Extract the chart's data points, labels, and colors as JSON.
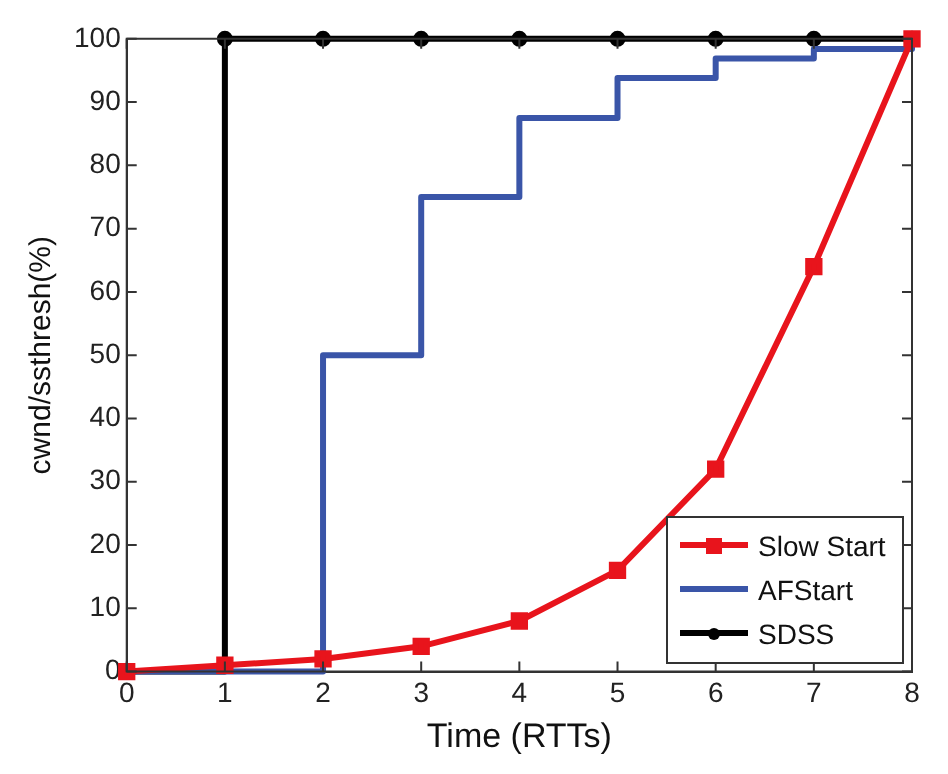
{
  "chart_data": {
    "type": "line",
    "xlabel": "Time (RTTs)",
    "ylabel": "cwnd/ssthresh(%)",
    "x": [
      0,
      1,
      2,
      3,
      4,
      5,
      6,
      7,
      8
    ],
    "xlim": [
      0,
      8
    ],
    "xticks": [
      0,
      1,
      2,
      3,
      4,
      5,
      6,
      7,
      8
    ],
    "ylim": [
      0,
      100
    ],
    "yticks": [
      0,
      10,
      20,
      30,
      40,
      50,
      60,
      70,
      80,
      90,
      100
    ],
    "grid": false,
    "legend": "bottom right",
    "series": [
      {
        "name": "Slow Start",
        "type": "line",
        "color": "#e8141c",
        "marker": "square",
        "values": [
          0,
          1,
          2,
          4,
          8,
          16,
          32,
          64,
          100
        ]
      },
      {
        "name": "AFStart",
        "type": "step",
        "color": "#3a55a8",
        "marker": "none",
        "values": [
          0,
          0,
          50,
          75,
          87.5,
          93.8,
          96.9,
          98.4,
          100
        ]
      },
      {
        "name": "SDSS",
        "type": "step",
        "color": "#000000",
        "marker": "circle",
        "values": [
          0,
          100,
          100,
          100,
          100,
          100,
          100,
          100,
          100
        ]
      }
    ]
  }
}
